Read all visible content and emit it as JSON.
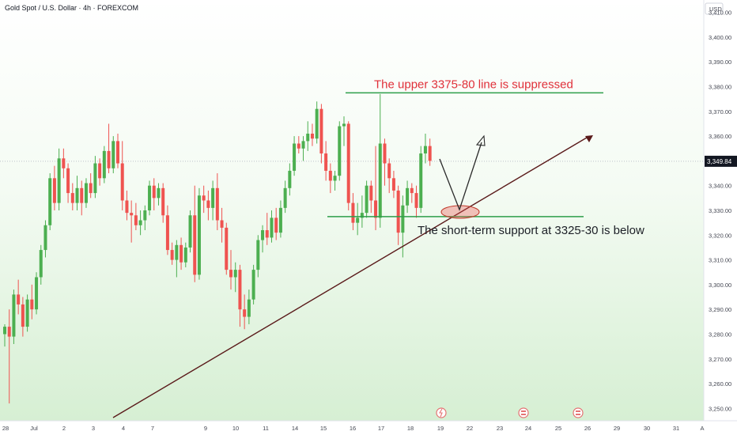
{
  "title": "Gold Spot / U.S. Dollar · 4h · FOREXCOM",
  "currency_label": "USD",
  "last_price": "3,349.84",
  "colors": {
    "up": "#26a69a",
    "down": "#ef5350",
    "up_body": "#4caf50",
    "annotation_red": "#e0303a",
    "annotation_green": "#2e9e4a",
    "trendline": "#5a1a1a"
  },
  "annotations": {
    "resistance_text": "The upper 3375-80 line is suppressed",
    "support_text": "The short-term support at 3325-30 is below",
    "resistance_price": 3377.5,
    "support_price": 3327.5
  },
  "chart_data": {
    "type": "candlestick",
    "title": "Gold Spot / U.S. Dollar · 4h · FOREXCOM",
    "ylim": [
      3245,
      3415
    ],
    "y_ticks": [
      "3,250.00",
      "3,260.00",
      "3,270.00",
      "3,280.00",
      "3,290.00",
      "3,300.00",
      "3,310.00",
      "3,320.00",
      "3,330.00",
      "3,340.00",
      "3,350.00",
      "3,360.00",
      "3,370.00",
      "3,380.00",
      "3,390.00",
      "3,400.00",
      "3,410.00"
    ],
    "x_ticks": [
      "28",
      "Jul",
      "2",
      "3",
      "4",
      "7",
      "9",
      "10",
      "11",
      "14",
      "15",
      "16",
      "17",
      "18",
      "19",
      "22",
      "23",
      "24",
      "25",
      "26",
      "29",
      "30",
      "31",
      "A"
    ],
    "candles": [
      {
        "o": 3280,
        "h": 3284,
        "l": 3275,
        "c": 3283
      },
      {
        "o": 3283,
        "h": 3290,
        "l": 3252,
        "c": 3279
      },
      {
        "o": 3279,
        "h": 3298,
        "l": 3276,
        "c": 3296
      },
      {
        "o": 3296,
        "h": 3302,
        "l": 3288,
        "c": 3292
      },
      {
        "o": 3292,
        "h": 3295,
        "l": 3279,
        "c": 3283
      },
      {
        "o": 3283,
        "h": 3296,
        "l": 3281,
        "c": 3294
      },
      {
        "o": 3294,
        "h": 3300,
        "l": 3286,
        "c": 3290
      },
      {
        "o": 3290,
        "h": 3305,
        "l": 3288,
        "c": 3303
      },
      {
        "o": 3303,
        "h": 3316,
        "l": 3300,
        "c": 3314
      },
      {
        "o": 3314,
        "h": 3326,
        "l": 3311,
        "c": 3324
      },
      {
        "o": 3324,
        "h": 3345,
        "l": 3322,
        "c": 3343
      },
      {
        "o": 3343,
        "h": 3348,
        "l": 3330,
        "c": 3333
      },
      {
        "o": 3333,
        "h": 3355,
        "l": 3330,
        "c": 3351
      },
      {
        "o": 3351,
        "h": 3355,
        "l": 3343,
        "c": 3347
      },
      {
        "o": 3347,
        "h": 3349,
        "l": 3333,
        "c": 3337
      },
      {
        "o": 3337,
        "h": 3341,
        "l": 3330,
        "c": 3333
      },
      {
        "o": 3333,
        "h": 3344,
        "l": 3330,
        "c": 3339
      },
      {
        "o": 3339,
        "h": 3342,
        "l": 3328,
        "c": 3333
      },
      {
        "o": 3333,
        "h": 3343,
        "l": 3331,
        "c": 3341
      },
      {
        "o": 3341,
        "h": 3345,
        "l": 3335,
        "c": 3337
      },
      {
        "o": 3337,
        "h": 3352,
        "l": 3335,
        "c": 3349
      },
      {
        "o": 3349,
        "h": 3351,
        "l": 3340,
        "c": 3343
      },
      {
        "o": 3343,
        "h": 3356,
        "l": 3341,
        "c": 3354
      },
      {
        "o": 3354,
        "h": 3365,
        "l": 3345,
        "c": 3347
      },
      {
        "o": 3347,
        "h": 3360,
        "l": 3345,
        "c": 3358
      },
      {
        "o": 3358,
        "h": 3361,
        "l": 3347,
        "c": 3349
      },
      {
        "o": 3349,
        "h": 3358,
        "l": 3330,
        "c": 3334
      },
      {
        "o": 3334,
        "h": 3338,
        "l": 3326,
        "c": 3329
      },
      {
        "o": 3329,
        "h": 3334,
        "l": 3317,
        "c": 3328
      },
      {
        "o": 3328,
        "h": 3333,
        "l": 3322,
        "c": 3324
      },
      {
        "o": 3324,
        "h": 3330,
        "l": 3320,
        "c": 3326
      },
      {
        "o": 3326,
        "h": 3332,
        "l": 3322,
        "c": 3330
      },
      {
        "o": 3330,
        "h": 3342,
        "l": 3328,
        "c": 3340
      },
      {
        "o": 3340,
        "h": 3343,
        "l": 3330,
        "c": 3335
      },
      {
        "o": 3335,
        "h": 3341,
        "l": 3332,
        "c": 3339
      },
      {
        "o": 3339,
        "h": 3341,
        "l": 3325,
        "c": 3328
      },
      {
        "o": 3328,
        "h": 3332,
        "l": 3312,
        "c": 3314
      },
      {
        "o": 3314,
        "h": 3317,
        "l": 3308,
        "c": 3310
      },
      {
        "o": 3310,
        "h": 3318,
        "l": 3303,
        "c": 3316
      },
      {
        "o": 3316,
        "h": 3319,
        "l": 3306,
        "c": 3309
      },
      {
        "o": 3309,
        "h": 3317,
        "l": 3307,
        "c": 3315
      },
      {
        "o": 3315,
        "h": 3330,
        "l": 3313,
        "c": 3328
      },
      {
        "o": 3328,
        "h": 3340,
        "l": 3301,
        "c": 3304
      },
      {
        "o": 3304,
        "h": 3339,
        "l": 3302,
        "c": 3336
      },
      {
        "o": 3336,
        "h": 3340,
        "l": 3329,
        "c": 3334
      },
      {
        "o": 3334,
        "h": 3338,
        "l": 3326,
        "c": 3331
      },
      {
        "o": 3331,
        "h": 3342,
        "l": 3326,
        "c": 3339
      },
      {
        "o": 3339,
        "h": 3345,
        "l": 3322,
        "c": 3326
      },
      {
        "o": 3326,
        "h": 3331,
        "l": 3317,
        "c": 3323
      },
      {
        "o": 3323,
        "h": 3325,
        "l": 3304,
        "c": 3306
      },
      {
        "o": 3306,
        "h": 3314,
        "l": 3298,
        "c": 3303
      },
      {
        "o": 3303,
        "h": 3309,
        "l": 3297,
        "c": 3306
      },
      {
        "o": 3306,
        "h": 3308,
        "l": 3283,
        "c": 3290
      },
      {
        "o": 3290,
        "h": 3296,
        "l": 3282,
        "c": 3287
      },
      {
        "o": 3287,
        "h": 3298,
        "l": 3284,
        "c": 3294
      },
      {
        "o": 3294,
        "h": 3308,
        "l": 3292,
        "c": 3306
      },
      {
        "o": 3306,
        "h": 3320,
        "l": 3303,
        "c": 3318
      },
      {
        "o": 3318,
        "h": 3324,
        "l": 3313,
        "c": 3322
      },
      {
        "o": 3322,
        "h": 3329,
        "l": 3316,
        "c": 3319
      },
      {
        "o": 3319,
        "h": 3330,
        "l": 3317,
        "c": 3327
      },
      {
        "o": 3327,
        "h": 3331,
        "l": 3318,
        "c": 3321
      },
      {
        "o": 3321,
        "h": 3334,
        "l": 3319,
        "c": 3331
      },
      {
        "o": 3331,
        "h": 3342,
        "l": 3329,
        "c": 3339
      },
      {
        "o": 3339,
        "h": 3349,
        "l": 3336,
        "c": 3346
      },
      {
        "o": 3346,
        "h": 3360,
        "l": 3344,
        "c": 3357
      },
      {
        "o": 3357,
        "h": 3360,
        "l": 3353,
        "c": 3355
      },
      {
        "o": 3355,
        "h": 3360,
        "l": 3350,
        "c": 3358
      },
      {
        "o": 3358,
        "h": 3366,
        "l": 3354,
        "c": 3361
      },
      {
        "o": 3361,
        "h": 3365,
        "l": 3356,
        "c": 3359
      },
      {
        "o": 3359,
        "h": 3374,
        "l": 3357,
        "c": 3371
      },
      {
        "o": 3371,
        "h": 3373,
        "l": 3349,
        "c": 3353
      },
      {
        "o": 3353,
        "h": 3358,
        "l": 3342,
        "c": 3346
      },
      {
        "o": 3346,
        "h": 3349,
        "l": 3337,
        "c": 3342
      },
      {
        "o": 3342,
        "h": 3346,
        "l": 3338,
        "c": 3344
      },
      {
        "o": 3344,
        "h": 3366,
        "l": 3342,
        "c": 3364
      },
      {
        "o": 3364,
        "h": 3368,
        "l": 3356,
        "c": 3365
      },
      {
        "o": 3365,
        "h": 3366,
        "l": 3330,
        "c": 3333
      },
      {
        "o": 3333,
        "h": 3337,
        "l": 3322,
        "c": 3325
      },
      {
        "o": 3325,
        "h": 3333,
        "l": 3320,
        "c": 3327
      },
      {
        "o": 3327,
        "h": 3336,
        "l": 3323,
        "c": 3329
      },
      {
        "o": 3329,
        "h": 3342,
        "l": 3327,
        "c": 3340
      },
      {
        "o": 3340,
        "h": 3342,
        "l": 3329,
        "c": 3334
      },
      {
        "o": 3334,
        "h": 3356,
        "l": 3322,
        "c": 3327
      },
      {
        "o": 3327,
        "h": 3377,
        "l": 3323,
        "c": 3357
      },
      {
        "o": 3357,
        "h": 3359,
        "l": 3340,
        "c": 3349
      },
      {
        "o": 3349,
        "h": 3351,
        "l": 3337,
        "c": 3343
      },
      {
        "o": 3343,
        "h": 3346,
        "l": 3335,
        "c": 3338
      },
      {
        "o": 3338,
        "h": 3340,
        "l": 3316,
        "c": 3321
      },
      {
        "o": 3321,
        "h": 3336,
        "l": 3311,
        "c": 3332
      },
      {
        "o": 3332,
        "h": 3342,
        "l": 3329,
        "c": 3339
      },
      {
        "o": 3339,
        "h": 3341,
        "l": 3333,
        "c": 3337
      },
      {
        "o": 3337,
        "h": 3340,
        "l": 3327,
        "c": 3331
      },
      {
        "o": 3331,
        "h": 3356,
        "l": 3329,
        "c": 3353
      },
      {
        "o": 3353,
        "h": 3361,
        "l": 3349,
        "c": 3356
      },
      {
        "o": 3356,
        "h": 3359,
        "l": 3348,
        "c": 3350
      }
    ]
  }
}
